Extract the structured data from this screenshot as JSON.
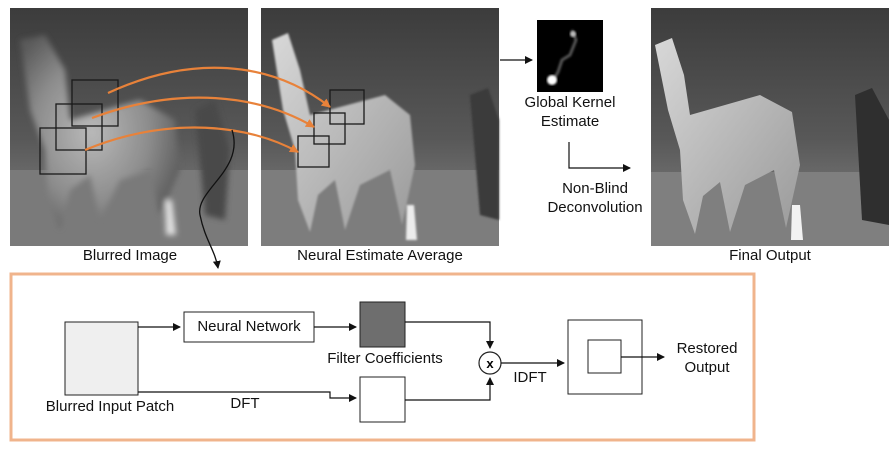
{
  "figure": {
    "photos": {
      "blurred": {
        "caption": "Blurred Image"
      },
      "neural_average": {
        "caption": "Neural Estimate Average"
      },
      "final": {
        "caption": "Final Output"
      }
    },
    "kernel": {
      "caption_line1": "Global Kernel",
      "caption_line2": "Estimate"
    },
    "deconv": {
      "label_line1": "Non-Blind",
      "label_line2": "Deconvolution"
    },
    "pipeline": {
      "input_patch": "Blurred Input Patch",
      "neural_network": "Neural Network",
      "filter_coefficients": "Filter Coefficients",
      "dft": "DFT",
      "multiply": "x",
      "idft": "IDFT",
      "output_line1": "Restored",
      "output_line2": "Output"
    },
    "colors": {
      "accent_orange": "#e8823a",
      "panel_border": "#f0b48c",
      "filter_fill": "#6e6e6e",
      "input_fill": "#efefef"
    }
  }
}
